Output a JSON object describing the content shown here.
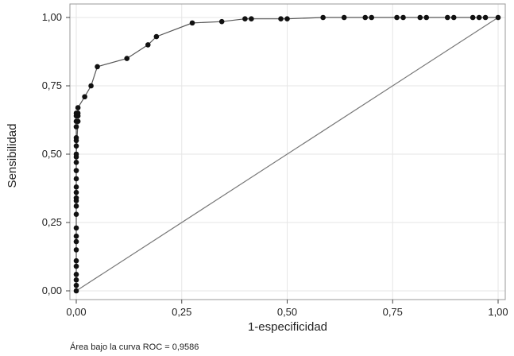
{
  "chart_data": {
    "type": "line",
    "xlabel": "1-especificidad",
    "ylabel": "Sensibilidad",
    "xlim": [
      0,
      1
    ],
    "ylim": [
      0,
      1
    ],
    "x_ticks": [
      "0,00",
      "0,25",
      "0,50",
      "0,75",
      "1,00"
    ],
    "y_ticks": [
      "0,00",
      "0,25",
      "0,50",
      "0,75",
      "1,00"
    ],
    "grid": true,
    "legend": "none",
    "colors": {
      "curve": "#555555",
      "marker": "#111111",
      "reference": "#777777",
      "grid": "#e6e6e6",
      "frame": "#999999"
    },
    "series": [
      {
        "type": "line-with-markers",
        "x": [
          0,
          0,
          0,
          0,
          0,
          0,
          0,
          0,
          0,
          0,
          0,
          0,
          0,
          0,
          0,
          0,
          0,
          0,
          0,
          0,
          0,
          0,
          0,
          0,
          0,
          0,
          0,
          0,
          0.004,
          0.004,
          0.004,
          0.004,
          0.02,
          0.035,
          0.05,
          0.12,
          0.17,
          0.19,
          0.275,
          0.345,
          0.4,
          0.415,
          0.485,
          0.5,
          0.585,
          0.635,
          0.685,
          0.7,
          0.76,
          0.775,
          0.815,
          0.83,
          0.88,
          0.895,
          0.94,
          0.955,
          0.97,
          1.0
        ],
        "y": [
          0,
          0.02,
          0.04,
          0.06,
          0.09,
          0.11,
          0.15,
          0.18,
          0.2,
          0.23,
          0.28,
          0.31,
          0.33,
          0.34,
          0.36,
          0.38,
          0.41,
          0.44,
          0.47,
          0.49,
          0.53,
          0.56,
          0.6,
          0.62,
          0.64,
          0.65,
          0.55,
          0.5,
          0.62,
          0.64,
          0.65,
          0.67,
          0.71,
          0.75,
          0.82,
          0.85,
          0.9,
          0.93,
          0.98,
          0.985,
          0.995,
          0.995,
          0.995,
          0.995,
          1.0,
          1.0,
          1.0,
          1.0,
          1.0,
          1.0,
          1.0,
          1.0,
          1.0,
          1.0,
          1.0,
          1.0,
          1.0,
          1.0
        ]
      },
      {
        "type": "reference-line",
        "x": [
          0,
          1
        ],
        "y": [
          0,
          1
        ]
      }
    ],
    "annotation": "Área bajo la curva ROC = 0,9586"
  }
}
